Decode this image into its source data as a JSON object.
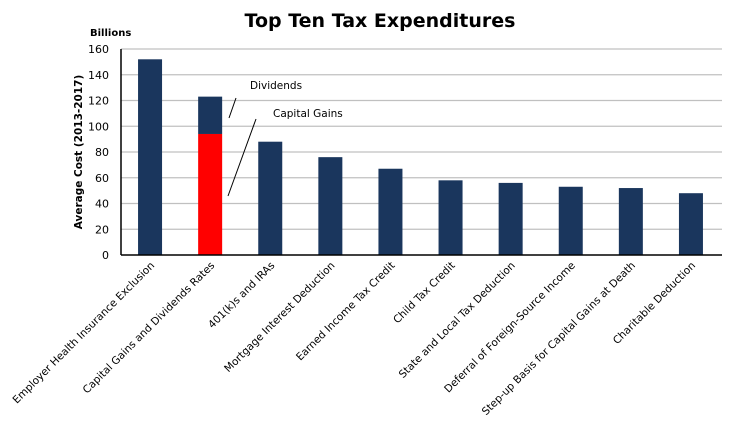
{
  "chart_data": {
    "type": "bar",
    "stacked": true,
    "title": "Top Ten Tax Expenditures",
    "unit_label": "Billions",
    "xlabel": "",
    "ylabel": "Average Cost (2013-2017)",
    "ylim": [
      0,
      160
    ],
    "yticks": [
      0,
      20,
      40,
      60,
      80,
      100,
      120,
      140,
      160
    ],
    "grid": true,
    "categories": [
      "Employer Health Insurance Exclusion",
      "Capital Gains and Dividends Rates",
      "401(k)s and IRAs",
      "Mortgage Interest Deduction",
      "Earned Income Tax Credit",
      "Child Tax Credit",
      "State and Local Tax Deduction",
      "Deferral of Foreign-Source Income",
      "Step-up Basis for Capital Gains at Death",
      "Charitable Deduction"
    ],
    "series": [
      {
        "name": "Capital Gains",
        "color": "#ff0000",
        "values": [
          0,
          94,
          0,
          0,
          0,
          0,
          0,
          0,
          0,
          0
        ]
      },
      {
        "name": "Total / Dividends",
        "color": "#1a365d",
        "values": [
          152,
          29,
          88,
          76,
          67,
          58,
          56,
          53,
          52,
          48
        ]
      }
    ],
    "totals": [
      152,
      123,
      88,
      76,
      67,
      58,
      56,
      53,
      52,
      48
    ],
    "annotations": [
      {
        "text": "Dividends",
        "target_category": "Capital Gains and Dividends Rates",
        "segment": "Dividends"
      },
      {
        "text": "Capital Gains",
        "target_category": "Capital Gains and Dividends Rates",
        "segment": "Capital Gains"
      }
    ],
    "colors": {
      "bar": "#1a365d",
      "highlight": "#ff0000",
      "grid": "#c0c0c0",
      "axis": "#000000"
    }
  }
}
